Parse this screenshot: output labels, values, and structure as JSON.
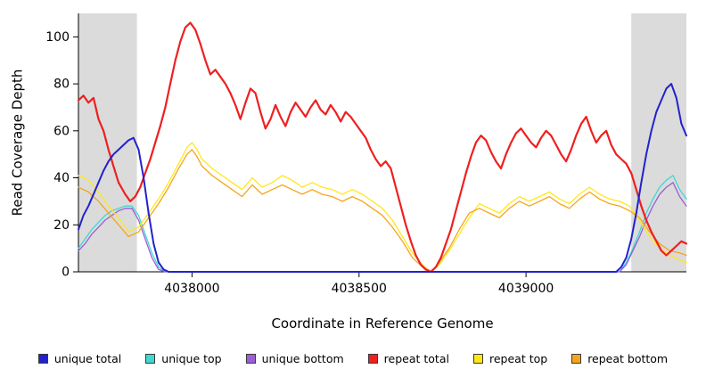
{
  "chart_data": {
    "type": "line",
    "title": "",
    "xlabel": "Coordinate in Reference Genome",
    "ylabel": "Read Coverage Depth",
    "xlim": [
      4037660,
      4039480
    ],
    "ylim": [
      0,
      110
    ],
    "xticks": [
      4038000,
      4038500,
      4039000
    ],
    "yticks": [
      0,
      20,
      40,
      60,
      80,
      100
    ],
    "grid": false,
    "legend_position": "bottom",
    "shading_color": "#DBDBDB",
    "shaded_regions": [
      [
        4037660,
        4037835
      ],
      [
        4039315,
        4039480
      ]
    ],
    "series": [
      {
        "name": "unique total",
        "color": "#2222CC",
        "width": 2,
        "z": 4,
        "x": [
          4037660,
          4037675,
          4037690,
          4037705,
          4037720,
          4037735,
          4037750,
          4037765,
          4037780,
          4037795,
          4037810,
          4037825,
          4037840,
          4037855,
          4037870,
          4037885,
          4037900,
          4037915,
          4037930,
          4038500,
          4039270,
          4039285,
          4039300,
          4039315,
          4039330,
          4039345,
          4039360,
          4039375,
          4039390,
          4039405,
          4039420,
          4039435,
          4039450,
          4039465,
          4039480
        ],
        "y": [
          18,
          24,
          28,
          33,
          38,
          43,
          47,
          50,
          52,
          54,
          56,
          57,
          52,
          40,
          25,
          12,
          4,
          1,
          0,
          0,
          0,
          2,
          6,
          14,
          25,
          38,
          50,
          60,
          68,
          73,
          78,
          80,
          74,
          63,
          58
        ]
      },
      {
        "name": "unique top",
        "color": "#3FD8D0",
        "width": 1.3,
        "z": 1,
        "x": [
          4037660,
          4037680,
          4037700,
          4037720,
          4037740,
          4037760,
          4037780,
          4037800,
          4037820,
          4037840,
          4037860,
          4037880,
          4037900,
          4037920,
          4038500,
          4039280,
          4039300,
          4039320,
          4039340,
          4039360,
          4039380,
          4039400,
          4039420,
          4039440,
          4039460,
          4039480
        ],
        "y": [
          10,
          14,
          18,
          21,
          24,
          26,
          27,
          28,
          28,
          24,
          16,
          8,
          2,
          0,
          0,
          0,
          4,
          10,
          17,
          25,
          31,
          36,
          39,
          41,
          35,
          31
        ]
      },
      {
        "name": "unique bottom",
        "color": "#9A5FD6",
        "width": 1.3,
        "z": 1,
        "x": [
          4037660,
          4037680,
          4037700,
          4037720,
          4037740,
          4037760,
          4037780,
          4037800,
          4037820,
          4037840,
          4037860,
          4037880,
          4037900,
          4037920,
          4038500,
          4039280,
          4039300,
          4039320,
          4039340,
          4039360,
          4039380,
          4039400,
          4039420,
          4039440,
          4039460,
          4039480
        ],
        "y": [
          9,
          12,
          16,
          19,
          22,
          24,
          26,
          27,
          27,
          22,
          14,
          6,
          1,
          0,
          0,
          0,
          3,
          9,
          15,
          22,
          28,
          33,
          36,
          38,
          32,
          28
        ]
      },
      {
        "name": "repeat total",
        "color": "#EE2020",
        "width": 2.2,
        "z": 3,
        "x": [
          4037660,
          4037675,
          4037690,
          4037705,
          4037720,
          4037735,
          4037750,
          4037765,
          4037780,
          4037800,
          4037815,
          4037830,
          4037845,
          4037860,
          4037875,
          4037890,
          4037905,
          4037920,
          4037935,
          4037950,
          4037965,
          4037980,
          4037995,
          4038010,
          4038025,
          4038040,
          4038055,
          4038070,
          4038085,
          4038100,
          4038115,
          4038130,
          4038145,
          4038160,
          4038175,
          4038190,
          4038205,
          4038220,
          4038235,
          4038250,
          4038265,
          4038280,
          4038295,
          4038310,
          4038325,
          4038340,
          4038355,
          4038370,
          4038385,
          4038400,
          4038415,
          4038430,
          4038445,
          4038460,
          4038475,
          4038490,
          4038505,
          4038520,
          4038535,
          4038550,
          4038565,
          4038580,
          4038595,
          4038610,
          4038625,
          4038640,
          4038655,
          4038670,
          4038685,
          4038700,
          4038715,
          4038730,
          4038745,
          4038760,
          4038775,
          4038790,
          4038805,
          4038820,
          4038835,
          4038850,
          4038865,
          4038880,
          4038895,
          4038910,
          4038925,
          4038940,
          4038955,
          4038970,
          4038985,
          4039000,
          4039015,
          4039030,
          4039045,
          4039060,
          4039075,
          4039090,
          4039105,
          4039120,
          4039135,
          4039150,
          4039165,
          4039180,
          4039195,
          4039210,
          4039225,
          4039240,
          4039255,
          4039270,
          4039285,
          4039300,
          4039315,
          4039330,
          4039345,
          4039360,
          4039375,
          4039390,
          4039405,
          4039420,
          4039435,
          4039450,
          4039465,
          4039480
        ],
        "y": [
          73,
          75,
          72,
          74,
          65,
          60,
          52,
          45,
          38,
          33,
          30,
          32,
          36,
          42,
          48,
          55,
          62,
          70,
          80,
          90,
          98,
          104,
          106,
          103,
          97,
          90,
          84,
          86,
          83,
          80,
          76,
          71,
          65,
          72,
          78,
          76,
          68,
          61,
          65,
          71,
          66,
          62,
          68,
          72,
          69,
          66,
          70,
          73,
          69,
          67,
          71,
          68,
          64,
          68,
          66,
          63,
          60,
          57,
          52,
          48,
          45,
          47,
          44,
          36,
          28,
          20,
          13,
          7,
          3,
          1,
          0,
          2,
          6,
          12,
          18,
          26,
          34,
          42,
          49,
          55,
          58,
          56,
          51,
          47,
          44,
          50,
          55,
          59,
          61,
          58,
          55,
          53,
          57,
          60,
          58,
          54,
          50,
          47,
          52,
          58,
          63,
          66,
          60,
          55,
          58,
          60,
          54,
          50,
          48,
          46,
          42,
          35,
          28,
          22,
          17,
          13,
          9,
          7,
          9,
          11,
          13,
          12
        ]
      },
      {
        "name": "repeat top",
        "color": "#FFE81A",
        "width": 1.3,
        "z": 2,
        "x": [
          4037660,
          4037690,
          4037720,
          4037750,
          4037780,
          4037810,
          4037840,
          4037870,
          4037900,
          4037930,
          4037960,
          4037985,
          4038000,
          4038015,
          4038030,
          4038060,
          4038090,
          4038120,
          4038150,
          4038180,
          4038210,
          4038240,
          4038270,
          4038300,
          4038330,
          4038360,
          4038390,
          4038420,
          4038450,
          4038480,
          4038510,
          4038540,
          4038570,
          4038600,
          4038630,
          4038660,
          4038690,
          4038715,
          4038740,
          4038770,
          4038800,
          4038830,
          4038860,
          4038890,
          4038920,
          4038950,
          4038980,
          4039010,
          4039040,
          4039070,
          4039100,
          4039130,
          4039160,
          4039190,
          4039220,
          4039250,
          4039280,
          4039310,
          4039340,
          4039370,
          4039400,
          4039430,
          4039460,
          4039480
        ],
        "y": [
          41,
          39,
          34,
          28,
          23,
          17,
          19,
          25,
          31,
          38,
          46,
          53,
          55,
          52,
          48,
          44,
          41,
          38,
          35,
          40,
          36,
          38,
          41,
          39,
          36,
          38,
          36,
          35,
          33,
          35,
          33,
          30,
          27,
          22,
          15,
          8,
          3,
          0,
          3,
          9,
          16,
          23,
          29,
          27,
          25,
          29,
          32,
          30,
          32,
          34,
          31,
          29,
          33,
          36,
          33,
          31,
          30,
          28,
          22,
          15,
          10,
          7,
          5,
          4
        ]
      },
      {
        "name": "repeat bottom",
        "color": "#F5A51D",
        "width": 1.3,
        "z": 2,
        "x": [
          4037660,
          4037690,
          4037720,
          4037750,
          4037780,
          4037810,
          4037840,
          4037870,
          4037900,
          4037930,
          4037960,
          4037985,
          4038000,
          4038015,
          4038030,
          4038060,
          4038090,
          4038120,
          4038150,
          4038180,
          4038210,
          4038240,
          4038270,
          4038300,
          4038330,
          4038360,
          4038390,
          4038420,
          4038450,
          4038480,
          4038510,
          4038540,
          4038570,
          4038600,
          4038630,
          4038660,
          4038690,
          4038715,
          4038740,
          4038770,
          4038800,
          4038830,
          4038860,
          4038890,
          4038920,
          4038950,
          4038980,
          4039010,
          4039040,
          4039070,
          4039100,
          4039130,
          4039160,
          4039190,
          4039220,
          4039250,
          4039280,
          4039310,
          4039340,
          4039370,
          4039400,
          4039430,
          4039460,
          4039480
        ],
        "y": [
          36,
          34,
          30,
          25,
          20,
          15,
          17,
          23,
          29,
          36,
          44,
          50,
          52,
          49,
          45,
          41,
          38,
          35,
          32,
          37,
          33,
          35,
          37,
          35,
          33,
          35,
          33,
          32,
          30,
          32,
          30,
          27,
          24,
          19,
          13,
          6,
          2,
          0,
          4,
          10,
          18,
          25,
          27,
          25,
          23,
          27,
          30,
          28,
          30,
          32,
          29,
          27,
          31,
          34,
          31,
          29,
          28,
          26,
          23,
          17,
          12,
          9,
          8,
          7
        ]
      }
    ]
  }
}
